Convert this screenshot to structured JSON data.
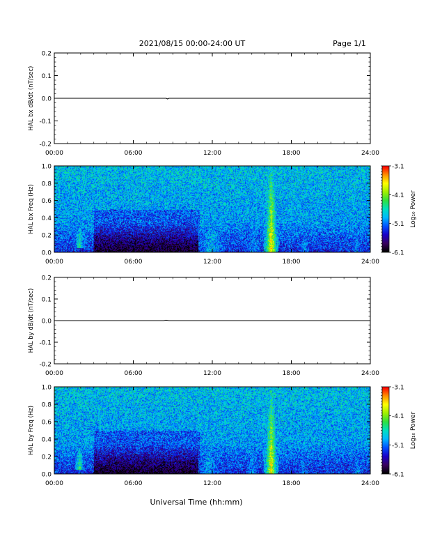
{
  "header": {
    "title": "2021/08/15  00:00-24:00 UT",
    "page": "Page 1/1"
  },
  "xaxis": {
    "label": "Universal Time (hh:mm)",
    "range_hours": [
      0,
      24
    ],
    "ticks": [
      "00:00",
      "06:00",
      "12:00",
      "18:00",
      "24:00"
    ]
  },
  "colorbar": {
    "label": "Log₁₀ Power",
    "range": [
      -6.1,
      -3.1
    ],
    "ticks": [
      "-3.1",
      "-4.1",
      "-5.1",
      "-6.1"
    ],
    "colormap": [
      "#000000",
      "#3a0060",
      "#1a00c8",
      "#0050ff",
      "#00b8ff",
      "#00e0c0",
      "#30e040",
      "#a0f000",
      "#ffff00",
      "#ff9000",
      "#ff0000"
    ]
  },
  "chart_data": [
    {
      "type": "line",
      "ylabel": "HAL bx dB/dt (nT/sec)",
      "ylim": [
        -0.2,
        0.2
      ],
      "yticks": [
        "0.2",
        "0.1",
        "0.0",
        "-0.1",
        "-0.2"
      ],
      "x_hours": [
        0,
        5.8,
        8.5,
        8.6,
        8.7,
        16.0,
        21.8,
        24
      ],
      "y": [
        0.0,
        0.0,
        0.0,
        -0.003,
        0.0,
        0.0,
        0.0,
        0.0
      ]
    },
    {
      "type": "heatmap",
      "ylabel": "HAL bx Freq (Hz)",
      "ylim": [
        0.0,
        1.0
      ],
      "yticks": [
        "1.0",
        "0.8",
        "0.6",
        "0.4",
        "0.2",
        "0.0"
      ],
      "features": [
        {
          "x_hours": [
            1.5,
            2.3
          ],
          "f_hz": [
            0.05,
            0.28
          ],
          "log_power": -4.3
        },
        {
          "x_hours": [
            10.9,
            13.0
          ],
          "f_hz": [
            0.0,
            0.8
          ],
          "log_power": -4.8
        },
        {
          "x_hours": [
            14.6,
            15.6
          ],
          "f_hz": [
            0.0,
            0.5
          ],
          "log_power": -5.0
        },
        {
          "x_hours": [
            15.9,
            17.0
          ],
          "f_hz": [
            0.0,
            1.0
          ],
          "log_power": -3.5
        },
        {
          "x_hours": [
            18.6,
            19.4
          ],
          "f_hz": [
            0.0,
            0.6
          ],
          "log_power": -5.0
        },
        {
          "x_hours": [
            22.6,
            23.3
          ],
          "f_hz": [
            0.0,
            0.45
          ],
          "log_power": -5.0
        },
        {
          "x_hours": [
            0,
            24
          ],
          "f_hz": [
            0.78,
            0.84
          ],
          "log_power": -4.7
        }
      ]
    },
    {
      "type": "line",
      "ylabel": "HAL by dB/dt (nT/sec)",
      "ylim": [
        -0.2,
        0.2
      ],
      "yticks": [
        "0.2",
        "0.1",
        "0.0",
        "-0.1",
        "-0.2"
      ],
      "x_hours": [
        0,
        6.5,
        8.3,
        8.5,
        8.7,
        16.0,
        22.5,
        24
      ],
      "y": [
        0.0,
        0.0,
        0.0,
        0.002,
        0.0,
        0.0,
        0.0,
        0.0
      ]
    },
    {
      "type": "heatmap",
      "ylabel": "HAL by Freq (Hz)",
      "ylim": [
        0.0,
        1.0
      ],
      "yticks": [
        "1.0",
        "0.8",
        "0.6",
        "0.4",
        "0.2",
        "0.0"
      ],
      "features": [
        {
          "x_hours": [
            1.5,
            2.3
          ],
          "f_hz": [
            0.05,
            0.3
          ],
          "log_power": -4.3
        },
        {
          "x_hours": [
            10.9,
            12.5
          ],
          "f_hz": [
            0.0,
            0.8
          ],
          "log_power": -4.9
        },
        {
          "x_hours": [
            14.5,
            15.5
          ],
          "f_hz": [
            0.0,
            0.45
          ],
          "log_power": -5.0
        },
        {
          "x_hours": [
            15.9,
            17.0
          ],
          "f_hz": [
            0.0,
            1.0
          ],
          "log_power": -3.6
        },
        {
          "x_hours": [
            18.5,
            19.2
          ],
          "f_hz": [
            0.0,
            0.55
          ],
          "log_power": -5.1
        },
        {
          "x_hours": [
            22.6,
            23.4
          ],
          "f_hz": [
            0.0,
            0.4
          ],
          "log_power": -5.0
        }
      ]
    }
  ]
}
